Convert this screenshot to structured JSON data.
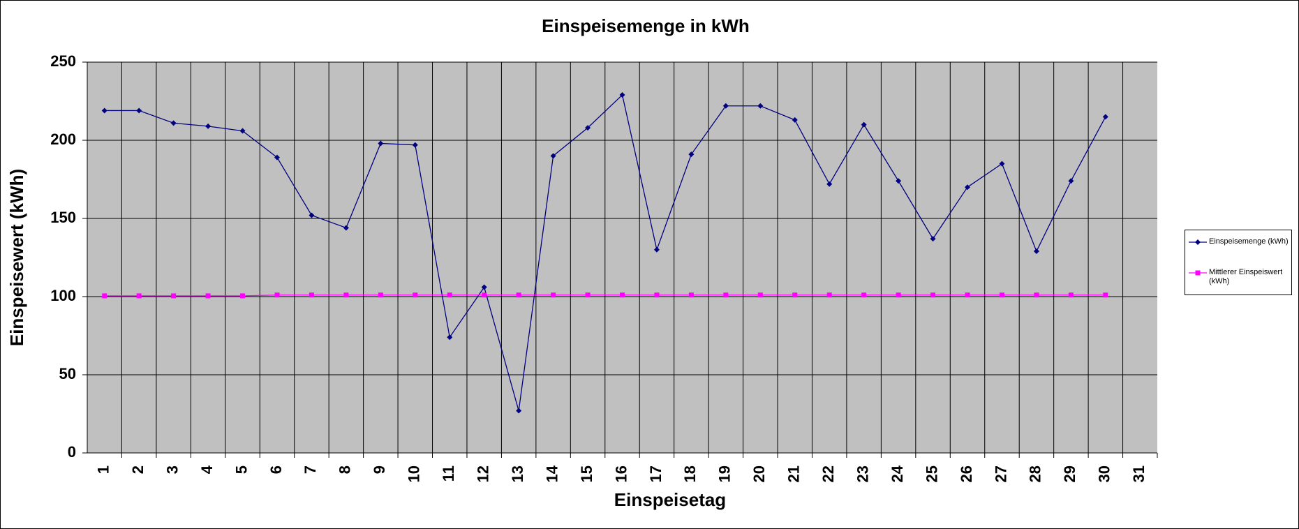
{
  "chart_data": {
    "type": "line",
    "title": "Einspeisemenge in kWh",
    "x_label": "Einspeisetag",
    "y_label": "Einspeisewert  (kWh)",
    "categories": [
      1,
      2,
      3,
      4,
      5,
      6,
      7,
      8,
      9,
      10,
      11,
      12,
      13,
      14,
      15,
      16,
      17,
      18,
      19,
      20,
      21,
      22,
      23,
      24,
      25,
      26,
      27,
      28,
      29,
      30,
      31
    ],
    "series": [
      {
        "name": "Einspeisemenge (kWh)",
        "color": "#000080",
        "marker": "diamond",
        "values": [
          219,
          219,
          211,
          209,
          206,
          189,
          152,
          144,
          198,
          197,
          74,
          106,
          27,
          190,
          208,
          229,
          130,
          191,
          222,
          222,
          213,
          172,
          210,
          174,
          137,
          170,
          185,
          129,
          174,
          215,
          null
        ]
      },
      {
        "name": "Mittlerer Einspeiswert (kWh)",
        "color": "#ff00ff",
        "marker": "square",
        "values": [
          100.5,
          100.5,
          100.5,
          100.5,
          100.5,
          101,
          101,
          101,
          101,
          101,
          101,
          101,
          101,
          101,
          101,
          101,
          101,
          101,
          101,
          101,
          101,
          101,
          101,
          101,
          101,
          101,
          101,
          101,
          101,
          101,
          null
        ]
      }
    ],
    "ylim": [
      0,
      250
    ],
    "yticks": [
      0,
      50,
      100,
      150,
      200,
      250
    ],
    "grid": true,
    "legend": "right"
  }
}
